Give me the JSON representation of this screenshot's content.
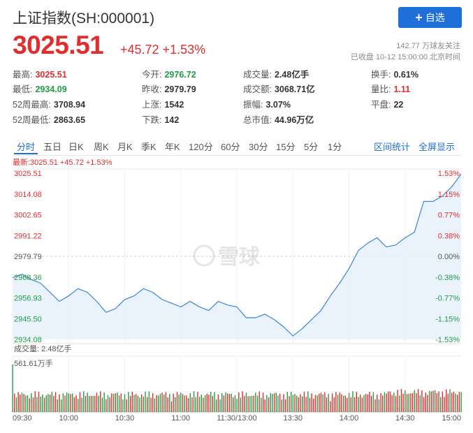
{
  "header": {
    "title": "上证指数(SH:000001)",
    "follow_button": {
      "label": "自选",
      "icon": "plus-icon"
    },
    "price": "3025.51",
    "change": "+45.72 +1.53%",
    "followers": "142.77 万球友关注",
    "market_status": "已收盘 10-12 15:00:00 北京时间"
  },
  "stats": [
    {
      "label": "最高:",
      "value": "3025.51",
      "color": "#e12d2d"
    },
    {
      "label": "今开:",
      "value": "2976.72",
      "color": "#1f9e44"
    },
    {
      "label": "成交量:",
      "value": "2.48亿手",
      "color": "#333333"
    },
    {
      "label": "换手:",
      "value": "0.61%",
      "color": "#333333"
    },
    {
      "label": "最低:",
      "value": "2934.09",
      "color": "#1f9e44"
    },
    {
      "label": "昨收:",
      "value": "2979.79",
      "color": "#333333"
    },
    {
      "label": "成交额:",
      "value": "3068.71亿",
      "color": "#333333"
    },
    {
      "label": "量比:",
      "value": "1.11",
      "color": "#e12d2d"
    },
    {
      "label": "52周最高:",
      "value": "3708.94",
      "color": "#333333"
    },
    {
      "label": "上涨:",
      "value": "1542",
      "color": "#333333"
    },
    {
      "label": "振幅:",
      "value": "3.07%",
      "color": "#333333"
    },
    {
      "label": "平盘:",
      "value": "22",
      "color": "#333333"
    },
    {
      "label": "52周最低:",
      "value": "2863.65",
      "color": "#333333"
    },
    {
      "label": "下跌:",
      "value": "142",
      "color": "#333333"
    },
    {
      "label": "总市值:",
      "value": "44.96万亿",
      "color": "#333333"
    }
  ],
  "tabs": [
    "分时",
    "五日",
    "日K",
    "周K",
    "月K",
    "季K",
    "年K",
    "120分",
    "60分",
    "30分",
    "15分",
    "5分",
    "1分"
  ],
  "active_tab": "分时",
  "tab_actions": [
    "区间统计",
    "全屏显示"
  ],
  "latest_label": "最新:3025.51 +45.72 +1.53%",
  "watermark": "雪球",
  "chart_data": {
    "type": "line",
    "series_name": "",
    "y_ticks": [
      "3025.51",
      "3014.08",
      "3002.65",
      "2991.22",
      "2979.79",
      "2968.36",
      "2956.93",
      "2945.50",
      "2934.08"
    ],
    "pct_ticks": [
      "1.53%",
      "1.15%",
      "0.77%",
      "0.38%",
      "0.00%",
      "-0.38%",
      "-0.77%",
      "-1.15%",
      "-1.53%"
    ],
    "ylim": [
      2934.08,
      3025.51
    ],
    "prev_close": 2979.79,
    "x_ticks": [
      "09:30",
      "10:00",
      "10:30",
      "11:00",
      "11:30/13:00",
      "13:30",
      "14:00",
      "14:30",
      "15:00"
    ],
    "x_count": 241,
    "price_points": [
      [
        0,
        2968
      ],
      [
        5,
        2970
      ],
      [
        10,
        2967
      ],
      [
        15,
        2965
      ],
      [
        20,
        2960
      ],
      [
        25,
        2955
      ],
      [
        30,
        2958
      ],
      [
        35,
        2962
      ],
      [
        40,
        2960
      ],
      [
        45,
        2955
      ],
      [
        50,
        2949
      ],
      [
        55,
        2951
      ],
      [
        60,
        2956
      ],
      [
        65,
        2958
      ],
      [
        70,
        2962
      ],
      [
        75,
        2960
      ],
      [
        80,
        2956
      ],
      [
        85,
        2954
      ],
      [
        90,
        2952
      ],
      [
        95,
        2955
      ],
      [
        100,
        2952
      ],
      [
        105,
        2950
      ],
      [
        110,
        2955
      ],
      [
        115,
        2953
      ],
      [
        120,
        2952
      ],
      [
        125,
        2946
      ],
      [
        130,
        2946
      ],
      [
        135,
        2948
      ],
      [
        140,
        2945
      ],
      [
        145,
        2941
      ],
      [
        150,
        2936
      ],
      [
        155,
        2940
      ],
      [
        160,
        2945
      ],
      [
        165,
        2950
      ],
      [
        170,
        2958
      ],
      [
        175,
        2965
      ],
      [
        180,
        2973
      ],
      [
        185,
        2983
      ],
      [
        190,
        2987
      ],
      [
        195,
        2990
      ],
      [
        200,
        2985
      ],
      [
        205,
        2986
      ],
      [
        210,
        2990
      ],
      [
        215,
        2993
      ],
      [
        220,
        3010
      ],
      [
        225,
        3010
      ],
      [
        230,
        3013
      ],
      [
        235,
        3018
      ],
      [
        240,
        3025
      ]
    ],
    "volume_label": "成交量: 2.48亿手",
    "volume_max_label": "561.61万手",
    "volume_max": 561.61,
    "volume_unit": "万手",
    "colors": {
      "up": "#e12d2d",
      "down": "#1f9e44",
      "line": "#3a86d8",
      "fill": "#e6f0fb"
    }
  }
}
